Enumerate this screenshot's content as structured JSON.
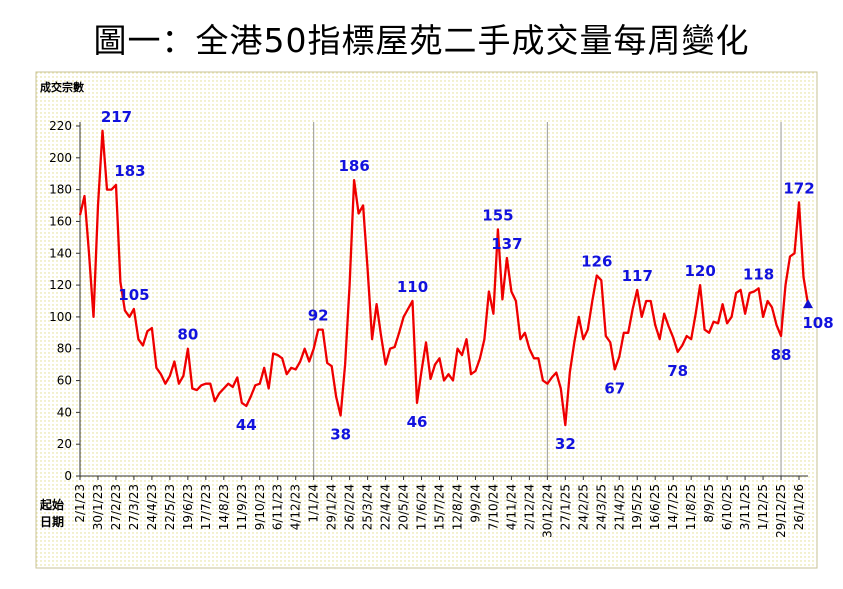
{
  "title": "圖一：全港50指標屋苑二手成交量每周變化",
  "chart_data": {
    "type": "line",
    "ylabel": "成交宗數",
    "xlabel_lines": [
      "起始",
      "日期"
    ],
    "ylim": [
      0,
      220
    ],
    "yticks": [
      0,
      20,
      40,
      60,
      80,
      100,
      120,
      140,
      160,
      180,
      200,
      220
    ],
    "xtick_labels": [
      "2/1/23",
      "30/1/23",
      "27/2/23",
      "27/3/23",
      "24/4/23",
      "22/5/23",
      "19/6/23",
      "17/7/23",
      "14/8/23",
      "11/9/23",
      "9/10/23",
      "6/11/23",
      "4/12/23",
      "1/1/24",
      "29/1/24",
      "26/2/24",
      "25/3/24",
      "22/4/24",
      "20/5/24",
      "17/6/24",
      "15/7/24",
      "12/8/24",
      "9/9/24",
      "7/10/24",
      "4/11/24",
      "2/12/24",
      "30/12/24",
      "27/1/25",
      "24/2/25",
      "24/3/25",
      "21/4/25",
      "19/5/25",
      "16/6/25",
      "14/7/25",
      "11/8/25",
      "8/9/25",
      "6/10/25",
      "3/11/25",
      "1/12/25",
      "29/12/25",
      "26/1/26"
    ],
    "year_dividers": [
      "1/1/24",
      "30/12/24",
      "29/12/25"
    ],
    "series": [
      {
        "color": "#ee0000",
        "values": [
          164,
          176,
          140,
          100,
          170,
          217,
          180,
          180,
          183,
          122,
          104,
          100,
          105,
          86,
          82,
          91,
          93,
          68,
          64,
          58,
          63,
          72,
          58,
          63,
          80,
          55,
          54,
          57,
          58,
          58,
          47,
          52,
          55,
          58,
          56,
          62,
          46,
          44,
          50,
          57,
          58,
          68,
          55,
          77,
          76,
          74,
          64,
          68,
          67,
          72,
          80,
          72,
          80,
          92,
          92,
          71,
          69,
          50,
          38,
          70,
          120,
          186,
          165,
          170,
          130,
          86,
          108,
          88,
          70,
          80,
          81,
          90,
          100,
          105,
          110,
          46,
          66,
          84,
          61,
          70,
          74,
          60,
          64,
          60,
          80,
          76,
          86,
          64,
          66,
          74,
          86,
          116,
          102,
          155,
          111,
          137,
          116,
          110,
          86,
          90,
          80,
          74,
          74,
          60,
          58,
          62,
          65,
          55,
          32,
          65,
          84,
          100,
          86,
          92,
          110,
          126,
          123,
          88,
          84,
          67,
          75,
          90,
          90,
          105,
          117,
          100,
          110,
          110,
          95,
          86,
          102,
          94,
          87,
          78,
          82,
          88,
          86,
          102,
          120,
          92,
          90,
          97,
          96,
          108,
          96,
          100,
          115,
          117,
          102,
          115,
          116,
          118,
          100,
          110,
          106,
          95,
          88,
          120,
          138,
          140,
          172,
          125,
          108
        ],
        "marker_last": "triangle",
        "point_labels": [
          {
            "i": 5,
            "text": "217"
          },
          {
            "i": 8,
            "text": "183"
          },
          {
            "i": 12,
            "text": "105"
          },
          {
            "i": 24,
            "text": "80"
          },
          {
            "i": 37,
            "text": "44"
          },
          {
            "i": 53,
            "text": "92"
          },
          {
            "i": 58,
            "text": "38"
          },
          {
            "i": 61,
            "text": "186"
          },
          {
            "i": 74,
            "text": "110"
          },
          {
            "i": 75,
            "text": "46"
          },
          {
            "i": 93,
            "text": "155"
          },
          {
            "i": 95,
            "text": "137"
          },
          {
            "i": 108,
            "text": "32"
          },
          {
            "i": 115,
            "text": "126"
          },
          {
            "i": 119,
            "text": "67"
          },
          {
            "i": 124,
            "text": "117"
          },
          {
            "i": 133,
            "text": "78"
          },
          {
            "i": 138,
            "text": "120"
          },
          {
            "i": 151,
            "text": "118"
          },
          {
            "i": 156,
            "text": "88"
          },
          {
            "i": 160,
            "text": "172"
          },
          {
            "i": 162,
            "text": "108"
          }
        ]
      }
    ]
  }
}
